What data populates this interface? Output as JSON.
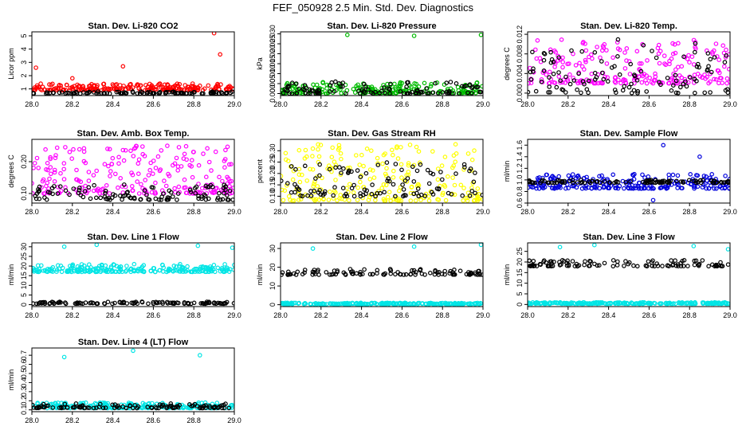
{
  "title": "FEF_050928  2.5 Min. Std. Dev. Diagnostics",
  "chart_data": [
    {
      "type": "scatter",
      "title": "Stan. Dev. Li-820 CO2",
      "ylabel": "Licor ppm",
      "xlim": [
        28.0,
        29.0
      ],
      "ylim": [
        0.5,
        5.3
      ],
      "x_ticks": [
        "28.0",
        "28.2",
        "28.4",
        "28.6",
        "28.8",
        "29.0"
      ],
      "y_ticks": [
        "1",
        "2",
        "3",
        "4",
        "5"
      ],
      "series": [
        {
          "name": "red",
          "color": "#ff0000",
          "base": [
            0.9,
            1.4
          ],
          "spikes": [
            [
              28.02,
              2.6
            ],
            [
              28.2,
              1.8
            ],
            [
              28.45,
              2.7
            ],
            [
              28.9,
              5.2
            ],
            [
              28.93,
              3.6
            ]
          ]
        },
        {
          "name": "black",
          "color": "#000000",
          "base": [
            0.65,
            0.8
          ],
          "spikes": []
        }
      ]
    },
    {
      "type": "scatter",
      "title": "Stan. Dev. Li-820 Pressure",
      "ylabel": "kPa",
      "xlim": [
        28.0,
        29.0
      ],
      "ylim": [
        -0.001,
        0.031
      ],
      "x_ticks": [
        "28.0",
        "28.2",
        "28.4",
        "28.6",
        "28.8",
        "29.0"
      ],
      "y_ticks": [
        "0.000",
        "0.005",
        "0.010",
        "0.015",
        "0.020",
        "0.025",
        "0.030"
      ],
      "series": [
        {
          "name": "green",
          "color": "#00bb00",
          "base": [
            0.0,
            0.006
          ],
          "spikes": [
            [
              28.33,
              0.0295
            ],
            [
              28.66,
              0.029
            ],
            [
              28.99,
              0.0295
            ]
          ]
        },
        {
          "name": "black",
          "color": "#000000",
          "base": [
            0.0,
            0.006
          ],
          "spikes": []
        }
      ]
    },
    {
      "type": "scatter",
      "title": "Stan. Dev. Li-820 Temp.",
      "ylabel": "degrees C",
      "xlim": [
        28.0,
        29.0
      ],
      "ylim": [
        -0.0005,
        0.0125
      ],
      "x_ticks": [
        "28.0",
        "28.2",
        "28.4",
        "28.6",
        "28.8",
        "29.0"
      ],
      "y_ticks": [
        "0.000",
        "0.004",
        "0.008",
        "0.012"
      ],
      "series": [
        {
          "name": "magenta",
          "color": "#ff00ff",
          "base": [
            0.002,
            0.011
          ],
          "spikes": []
        },
        {
          "name": "black",
          "color": "#000000",
          "base": [
            0.0,
            0.011
          ],
          "spikes": []
        }
      ]
    },
    {
      "type": "scatter",
      "title": "Stan. Dev. Amb. Box Temp.",
      "ylabel": "degrees C",
      "xlim": [
        28.0,
        29.0
      ],
      "ylim": [
        0.07,
        0.27
      ],
      "x_ticks": [
        "28.0",
        "28.2",
        "28.4",
        "28.6",
        "28.8",
        "29.0"
      ],
      "y_ticks": [
        "0.10",
        "0.20"
      ],
      "series": [
        {
          "name": "magenta",
          "color": "#ff00ff",
          "base": [
            0.1,
            0.25
          ],
          "spikes": []
        },
        {
          "name": "black",
          "color": "#000000",
          "base": [
            0.08,
            0.13
          ],
          "spikes": []
        }
      ]
    },
    {
      "type": "scatter",
      "title": "Stan. Dev. Gas Stream RH",
      "ylabel": "percent",
      "xlim": [
        28.0,
        29.0
      ],
      "ylim": [
        0.07,
        0.35
      ],
      "x_ticks": [
        "28.0",
        "28.2",
        "28.4",
        "28.6",
        "28.8",
        "29.0"
      ],
      "y_ticks": [
        "0.10",
        "0.15",
        "0.20",
        "0.25",
        "0.30"
      ],
      "series": [
        {
          "name": "yellow",
          "color": "#ffff00",
          "base": [
            0.08,
            0.33
          ],
          "spikes": []
        },
        {
          "name": "black",
          "color": "#000000",
          "base": [
            0.1,
            0.25
          ],
          "spikes": []
        }
      ]
    },
    {
      "type": "scatter",
      "title": "Stan. Dev. Sample Flow",
      "ylabel": "ml/min",
      "xlim": [
        28.0,
        29.0
      ],
      "ylim": [
        0.6,
        1.7
      ],
      "x_ticks": [
        "28.0",
        "28.2",
        "28.4",
        "28.6",
        "28.8",
        "29.0"
      ],
      "y_ticks": [
        "0.6",
        "0.8",
        "1.0",
        "1.2",
        "1.4",
        "1.6"
      ],
      "series": [
        {
          "name": "blue",
          "color": "#0000dd",
          "base": [
            0.85,
            1.1
          ],
          "spikes": [
            [
              28.67,
              1.6
            ],
            [
              28.62,
              0.65
            ],
            [
              28.85,
              1.4
            ]
          ]
        },
        {
          "name": "black",
          "color": "#000000",
          "base": [
            0.95,
            1.0
          ],
          "spikes": []
        }
      ]
    },
    {
      "type": "scatter",
      "title": "Stan. Dev. Line 1 Flow",
      "ylabel": "ml/min",
      "xlim": [
        28.0,
        29.0
      ],
      "ylim": [
        -1,
        32
      ],
      "x_ticks": [
        "28.0",
        "28.2",
        "28.4",
        "28.6",
        "28.8",
        "29.0"
      ],
      "y_ticks": [
        "0",
        "5",
        "10",
        "15",
        "20",
        "25",
        "30"
      ],
      "series": [
        {
          "name": "cyan",
          "color": "#00e5e5",
          "base": [
            17,
            21
          ],
          "spikes": [
            [
              28.16,
              30
            ],
            [
              28.32,
              31
            ],
            [
              28.82,
              30.5
            ],
            [
              28.99,
              29.5
            ]
          ]
        },
        {
          "name": "black",
          "color": "#000000",
          "base": [
            0.5,
            1.5
          ],
          "spikes": []
        }
      ]
    },
    {
      "type": "scatter",
      "title": "Stan. Dev. Line 2 Flow",
      "ylabel": "ml/min",
      "xlim": [
        28.0,
        29.0
      ],
      "ylim": [
        -1,
        33
      ],
      "x_ticks": [
        "28.0",
        "28.2",
        "28.4",
        "28.6",
        "28.8",
        "29.0"
      ],
      "y_ticks": [
        "0",
        "10",
        "20",
        "30"
      ],
      "series": [
        {
          "name": "cyan",
          "color": "#00e5e5",
          "base": [
            0.3,
            1.0
          ],
          "spikes": [
            [
              28.16,
              30
            ],
            [
              28.66,
              31
            ],
            [
              28.99,
              32
            ]
          ]
        },
        {
          "name": "black",
          "color": "#000000",
          "base": [
            16,
            19
          ],
          "spikes": []
        }
      ]
    },
    {
      "type": "scatter",
      "title": "Stan. Dev. Line 3 Flow",
      "ylabel": "ml/min",
      "xlim": [
        28.0,
        29.0
      ],
      "ylim": [
        -1,
        29
      ],
      "x_ticks": [
        "28.0",
        "28.2",
        "28.4",
        "28.6",
        "28.8",
        "29.0"
      ],
      "y_ticks": [
        "0",
        "5",
        "10",
        "15",
        "20",
        "25"
      ],
      "series": [
        {
          "name": "cyan",
          "color": "#00e5e5",
          "base": [
            0.3,
            1.0
          ],
          "spikes": [
            [
              28.16,
              27
            ],
            [
              28.33,
              28
            ],
            [
              28.82,
              27.5
            ],
            [
              28.99,
              26
            ]
          ]
        },
        {
          "name": "black",
          "color": "#000000",
          "base": [
            18,
            21
          ],
          "spikes": []
        }
      ]
    },
    {
      "type": "scatter",
      "title": "Stan. Dev. Line 4 (LT) Flow",
      "ylabel": "ml/min",
      "xlim": [
        28.0,
        29.0
      ],
      "ylim": [
        0.08,
        0.78
      ],
      "x_ticks": [
        "28.0",
        "28.2",
        "28.4",
        "28.6",
        "28.8",
        "29.0"
      ],
      "y_ticks": [
        "0.1",
        "0.2",
        "0.3",
        "0.4",
        "0.5",
        "0.6",
        "0.7"
      ],
      "series": [
        {
          "name": "cyan",
          "color": "#00e5e5",
          "base": [
            0.12,
            0.18
          ],
          "spikes": [
            [
              28.16,
              0.68
            ],
            [
              28.5,
              0.75
            ],
            [
              28.83,
              0.7
            ]
          ]
        },
        {
          "name": "black",
          "color": "#000000",
          "base": [
            0.12,
            0.17
          ],
          "spikes": []
        }
      ]
    }
  ]
}
